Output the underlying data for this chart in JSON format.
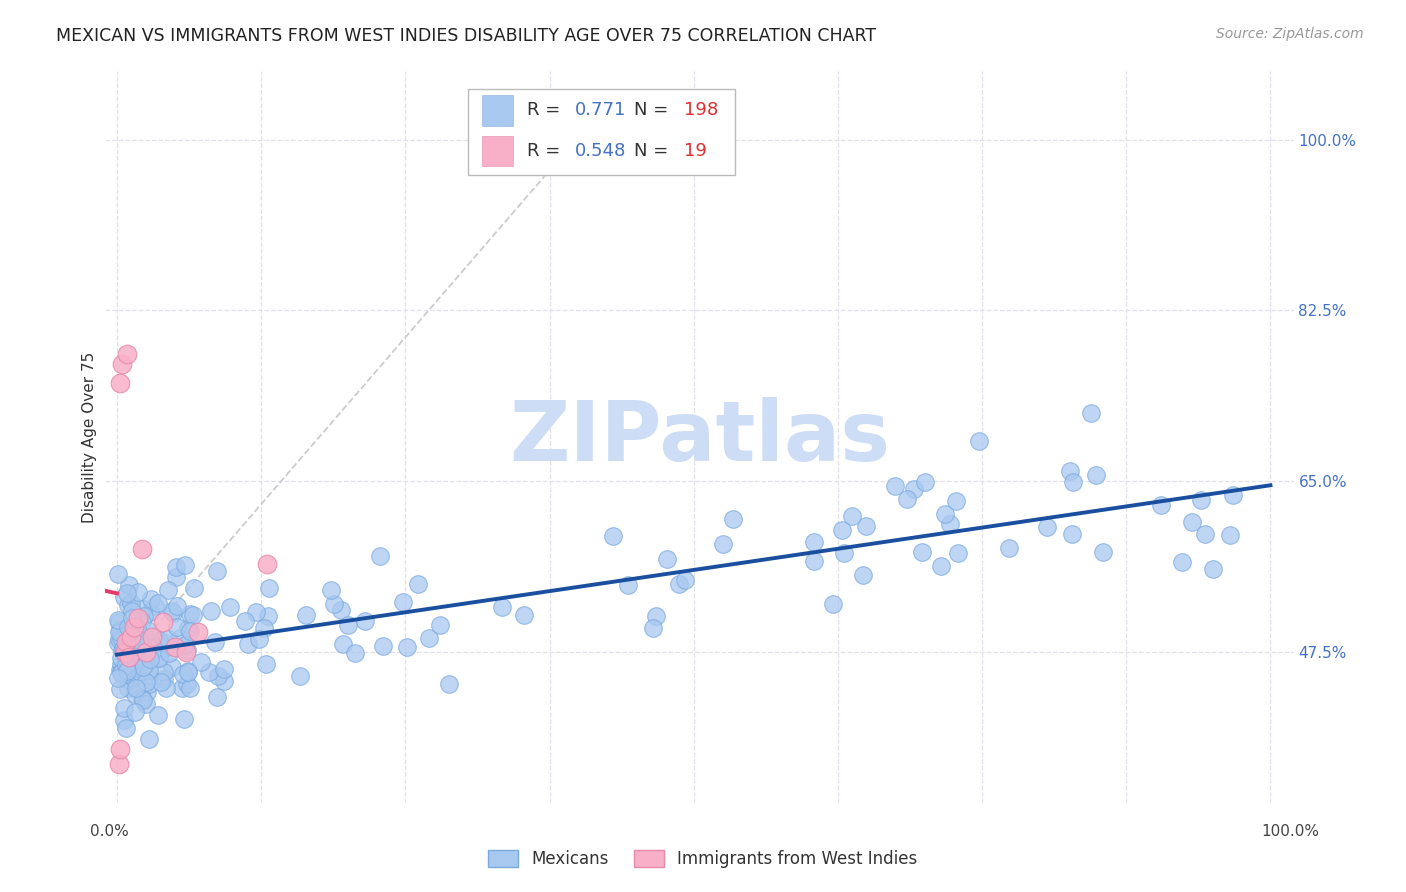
{
  "title": "MEXICAN VS IMMIGRANTS FROM WEST INDIES DISABILITY AGE OVER 75 CORRELATION CHART",
  "source": "Source: ZipAtlas.com",
  "ylabel": "Disability Age Over 75",
  "y_ticks": [
    0.475,
    0.65,
    0.825,
    1.0
  ],
  "y_tick_labels": [
    "47.5%",
    "65.0%",
    "82.5%",
    "100.0%"
  ],
  "xlim": [
    -0.01,
    1.02
  ],
  "ylim": [
    0.32,
    1.07
  ],
  "blue_R": 0.771,
  "blue_N": 198,
  "pink_R": 0.548,
  "pink_N": 19,
  "blue_color": "#a8c8f0",
  "blue_edge_color": "#7aaae0",
  "blue_line_color": "#1a4fa0",
  "pink_color": "#f8b0c8",
  "pink_edge_color": "#e888aa",
  "pink_line_color": "#e83868",
  "diag_color": "#cccccc",
  "watermark_color": "#cdddf5",
  "bg_color": "#ffffff",
  "grid_color": "#e0e0ea",
  "title_fontsize": 12.5,
  "source_fontsize": 10,
  "label_fontsize": 11,
  "tick_color": "#4472c4",
  "tick_fontsize": 11,
  "legend_fontsize": 13,
  "r_n_color": "#4472c4",
  "n_val_color": "#e03030"
}
